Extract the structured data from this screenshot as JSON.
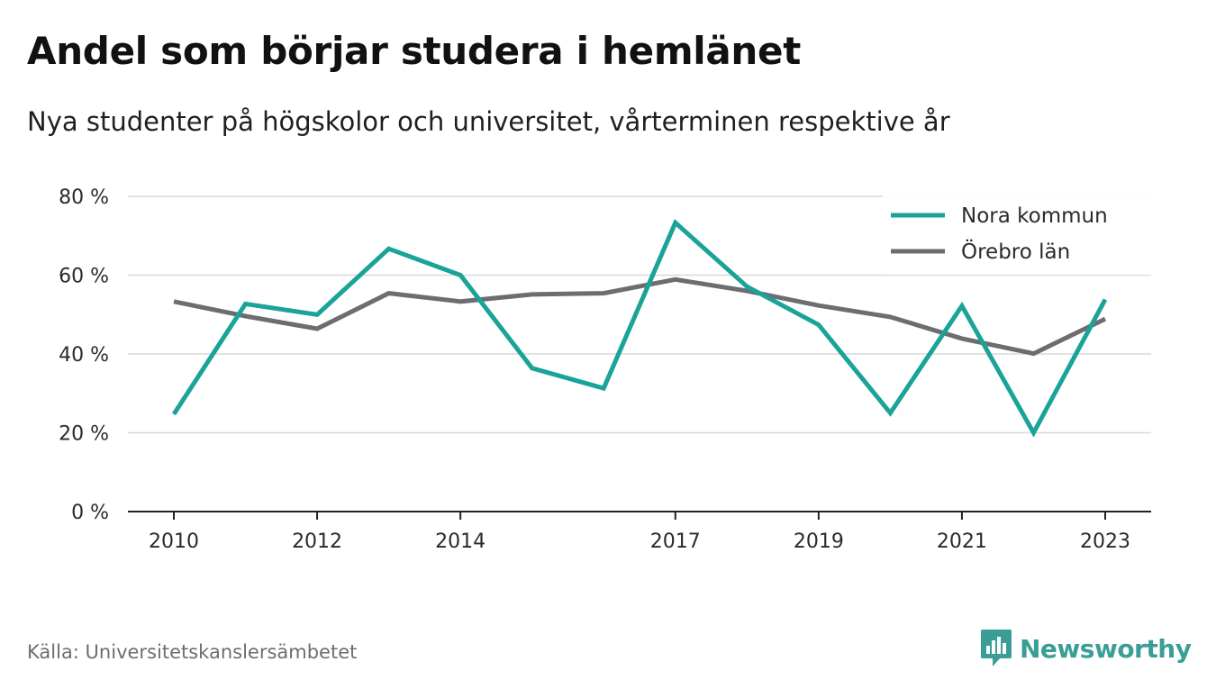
{
  "header": {
    "title": "Andel som börjar studera i hemlänet",
    "subtitle": "Nya studenter på högskolor och universitet, vårterminen respektive år"
  },
  "footer": {
    "source": "Källa: Universitetskanslersämbetet",
    "brand": "Newsworthy",
    "brand_icon": "newsworthy-logo-icon"
  },
  "colors": {
    "nora": "#1aa398",
    "orebro": "#6d6c72",
    "grid": "#d9d9d9",
    "axis": "#222222",
    "brand": "#3a9e97"
  },
  "chart_data": {
    "type": "line",
    "x": [
      2010,
      2011,
      2012,
      2013,
      2014,
      2015,
      2016,
      2017,
      2018,
      2019,
      2020,
      2021,
      2022,
      2023
    ],
    "x_tick_labels": [
      "2010",
      "2012",
      "2014",
      "2017",
      "2019",
      "2021",
      "2023"
    ],
    "y_tick_labels": [
      "0 %",
      "20 %",
      "40 %",
      "60 %",
      "80 %"
    ],
    "ylim": [
      0,
      80
    ],
    "grid": true,
    "legend_position": "top-right",
    "series": [
      {
        "name": "Nora kommun",
        "color": "#1aa398",
        "values": [
          24.7,
          52.7,
          50.0,
          66.7,
          60.0,
          36.4,
          31.3,
          73.3,
          57.1,
          47.4,
          25.0,
          52.2,
          20.0,
          53.8
        ]
      },
      {
        "name": "Örebro län",
        "color": "#6d6c72",
        "values": [
          53.3,
          49.6,
          46.4,
          55.4,
          53.3,
          55.1,
          55.4,
          58.9,
          56.0,
          52.3,
          49.4,
          43.9,
          40.1,
          48.9
        ]
      }
    ]
  }
}
